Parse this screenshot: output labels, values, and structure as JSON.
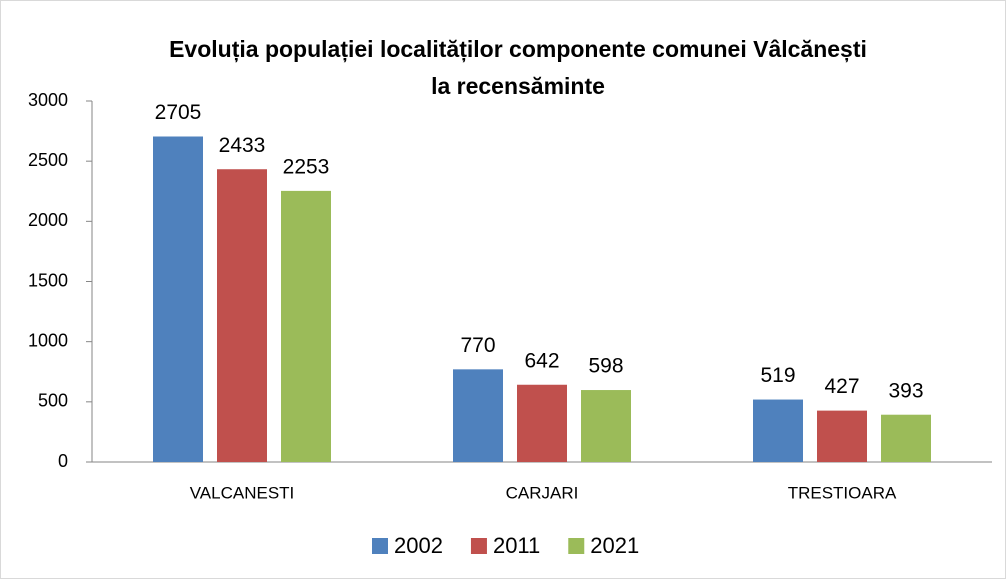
{
  "chart_data": {
    "type": "bar",
    "title": [
      "Evoluția populației localităților componente comunei Vâlcănești",
      "la recensăminte"
    ],
    "categories": [
      "VALCANESTI",
      "CARJARI",
      "TRESTIOARA"
    ],
    "series": [
      {
        "name": "2002",
        "color": "#4f81bd",
        "values": [
          2705,
          770,
          519
        ]
      },
      {
        "name": "2011",
        "color": "#c0504d",
        "values": [
          2433,
          642,
          427
        ]
      },
      {
        "name": "2021",
        "color": "#9bbb59",
        "values": [
          2253,
          598,
          393
        ]
      }
    ],
    "ylim": [
      0,
      3000
    ],
    "yticks": [
      0,
      500,
      1000,
      1500,
      2000,
      2500,
      3000
    ],
    "grid": false,
    "legend": "bottom"
  }
}
